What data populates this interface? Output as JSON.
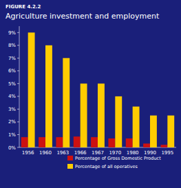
{
  "chart_data": {
    "type": "bar",
    "title": "Agriculture investment and employment",
    "subtitle": "FIGURE 4.2.2",
    "categories": [
      "1956",
      "1960",
      "1963",
      "1966",
      "1967",
      "1970",
      "1980",
      "1990",
      "1995"
    ],
    "series": [
      {
        "name": "Percentage of Gross Domestic Product",
        "color": "#cc1111",
        "values": [
          0.8,
          0.8,
          0.8,
          0.85,
          0.8,
          0.7,
          0.7,
          0.3,
          0.2
        ]
      },
      {
        "name": "Percentage of all operatives",
        "color": "#ffcc00",
        "values": [
          9.0,
          8.0,
          7.0,
          5.0,
          5.0,
          4.0,
          3.2,
          2.5,
          2.5
        ]
      }
    ],
    "ylim": [
      0,
      9.5
    ],
    "yticks": [
      {
        "value": 0,
        "label": "0%"
      },
      {
        "value": 1,
        "label": "1%"
      },
      {
        "value": 2,
        "label": "2%"
      },
      {
        "value": 3,
        "label": "3%"
      },
      {
        "value": 4,
        "label": "4%"
      },
      {
        "value": 5,
        "label": "5%"
      },
      {
        "value": 6,
        "label": "6%"
      },
      {
        "value": 7,
        "label": "7%"
      },
      {
        "value": 8,
        "label": "8%"
      },
      {
        "value": 9,
        "label": "9%"
      }
    ],
    "grid": false,
    "legend": "lower right"
  }
}
